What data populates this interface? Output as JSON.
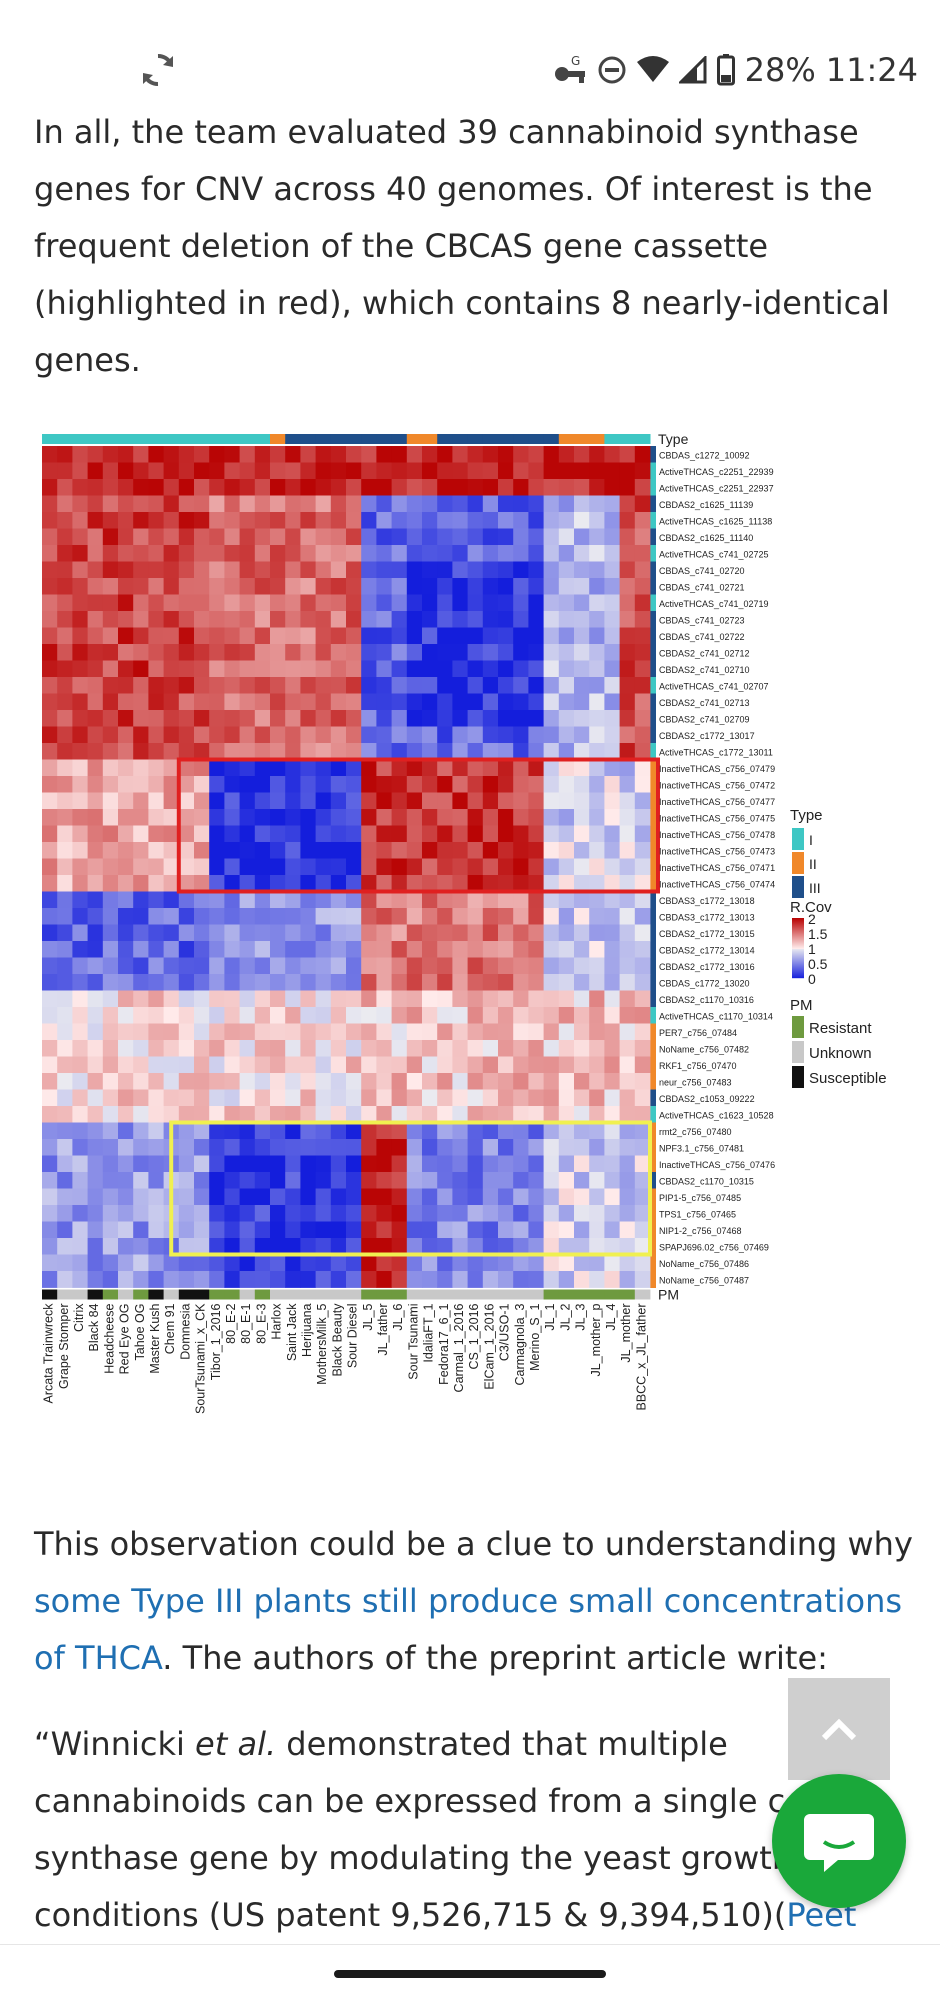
{
  "status": {
    "battery": "28%",
    "time": "11:24",
    "icons": [
      "sync-icon",
      "vpn-key-icon",
      "do-not-disturb-icon",
      "wifi-icon",
      "signal-icon",
      "battery-icon"
    ]
  },
  "article": {
    "p1": "In all, the team evaluated 39 cannabinoid synthase genes for CNV across 40 genomes. Of interest is the frequent deletion of the CBCAS gene cassette (highlighted in red), which contains 8 nearly-identical genes.",
    "p2_before": "This observation could be a clue to understanding why ",
    "p2_link": "some Type III plants still produce small concentrations of THCA",
    "p2_after": ". The authors of the preprint article write:",
    "p3_a": "“Winnicki ",
    "p3_em": "et al.",
    "p3_b": " demonstrated that multiple cannabinoids can be expressed from a single c",
    "p3_c": "synthase gene by modulating the yeast growth",
    "p3_d": "conditions (US patent 9,526,715 & 9,394,510)(",
    "p3_link": "Peet"
  },
  "chart_data": {
    "type": "heatmap",
    "rows": [
      "CBDAS_c1272_10092",
      "ActiveTHCAS_c2251_22939",
      "ActiveTHCAS_c2251_22937",
      "CBDAS2_c1625_11139",
      "ActiveTHCAS_c1625_11138",
      "CBDAS2_c1625_11140",
      "ActiveTHCAS_c741_02725",
      "CBDAS_c741_02720",
      "CBDAS_c741_02721",
      "ActiveTHCAS_c741_02719",
      "CBDAS_c741_02723",
      "CBDAS_c741_02722",
      "CBDAS2_c741_02712",
      "CBDAS2_c741_02710",
      "ActiveTHCAS_c741_02707",
      "CBDAS2_c741_02713",
      "CBDAS2_c741_02709",
      "CBDAS2_c1772_13017",
      "ActiveTHCAS_c1772_13011",
      "InactiveTHCAS_c756_07479",
      "InactiveTHCAS_c756_07472",
      "InactiveTHCAS_c756_07477",
      "InactiveTHCAS_c756_07475",
      "InactiveTHCAS_c756_07478",
      "InactiveTHCAS_c756_07473",
      "InactiveTHCAS_c756_07471",
      "InactiveTHCAS_c756_07474",
      "CBDAS3_c1772_13018",
      "CBDAS3_c1772_13013",
      "CBDAS2_c1772_13015",
      "CBDAS2_c1772_13014",
      "CBDAS2_c1772_13016",
      "CBDAS_c1772_13020",
      "CBDAS2_c1170_10316",
      "ActiveTHCAS_c1170_10314",
      "PER7_c756_07484",
      "NoName_c756_07482",
      "RKF1_c756_07470",
      "neur_c756_07483",
      "CBDAS2_c1053_09222",
      "ActiveTHCAS_c1623_10528",
      "rmt2_c756_07480",
      "NPF3.1_c756_07481",
      "InactiveTHCAS_c756_07476",
      "CBDAS2_c1170_10315",
      "PIP1-5_c756_07485",
      "TPS1_c756_07465",
      "NIP1-2_c756_07468",
      "SPAPJ696.02_c756_07469",
      "NoName_c756_07486",
      "NoName_c756_07487"
    ],
    "columns": [
      "Arcata Trainwreck",
      "Grape Stomper",
      "Citrix",
      "Black 84",
      "Headcheese",
      "Red Eye OG",
      "Tahoe OG",
      "Master Kush",
      "Chem 91",
      "Domnesia",
      "SourTsunami_x_CK",
      "Tibor_1_2016",
      "80_E-2",
      "80_E-1",
      "80_E-3",
      "Harlox",
      "Saint Jack",
      "Herijuana",
      "MothersMilk_5",
      "Black Beauty",
      "Sour Diesel",
      "JL_5",
      "JL_father",
      "JL_6",
      "Sour Tsunami",
      "IdaliaFT_1",
      "Fedora17_6_1",
      "Carmal_1_2016",
      "CS_1_2016",
      "ElCam_1_2016",
      "C3/USO-1",
      "Carmagnola_3",
      "Merino_S_1",
      "JL_1",
      "JL_2",
      "JL_3",
      "JL_mother_p",
      "JL_4",
      "JL_mother",
      "BBCC_x_JL_father"
    ],
    "type_legend": {
      "title": "Type",
      "items": [
        "I",
        "II",
        "III"
      ],
      "colors": [
        "#3ec7c4",
        "#f0882a",
        "#1f4f8a"
      ]
    },
    "color_scale": {
      "title": "R.Cov",
      "ticks": [
        "2",
        "1.5",
        "1",
        "0.5",
        "0"
      ]
    },
    "pm_legend": {
      "title": "PM",
      "items": [
        "Resistant",
        "Unknown",
        "Susceptible"
      ],
      "colors": [
        "#6e9a3f",
        "#c8c8c8",
        "#111111"
      ]
    },
    "top_label": "Type",
    "bottom_label": "PM"
  }
}
